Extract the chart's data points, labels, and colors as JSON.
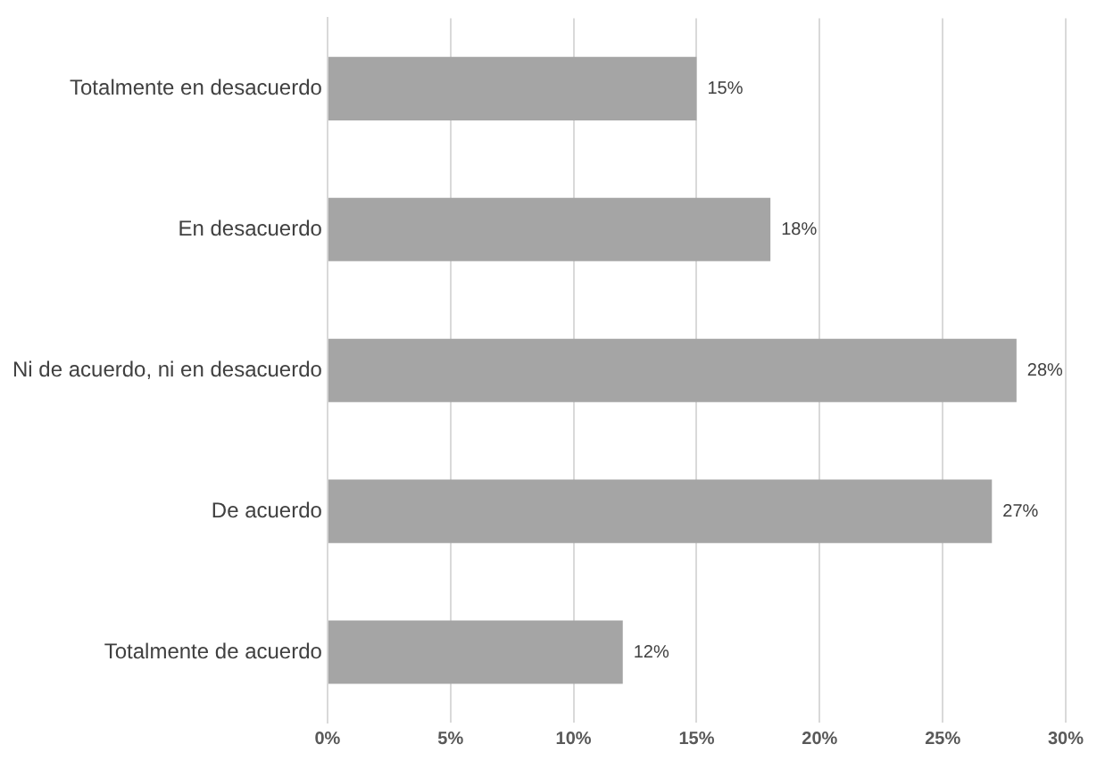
{
  "chart_data": {
    "type": "bar",
    "orientation": "horizontal",
    "categories": [
      "Totalmente en desacuerdo",
      "En desacuerdo",
      "Ni de acuerdo, ni en desacuerdo",
      "De acuerdo",
      "Totalmente de acuerdo"
    ],
    "values": [
      15,
      18,
      28,
      27,
      12
    ],
    "color": "#a5a5a5",
    "value_labels": [
      "15%",
      "18%",
      "28%",
      "27%",
      "12%"
    ],
    "xlim": [
      0,
      30
    ],
    "xticks": [
      {
        "value": 0,
        "label": "0%"
      },
      {
        "value": 5,
        "label": "5%"
      },
      {
        "value": 10,
        "label": "10%"
      },
      {
        "value": 15,
        "label": "15%"
      },
      {
        "value": 20,
        "label": "20%"
      },
      {
        "value": 25,
        "label": "25%"
      },
      {
        "value": 30,
        "label": "30%"
      }
    ],
    "grid": "x",
    "legend": false
  }
}
